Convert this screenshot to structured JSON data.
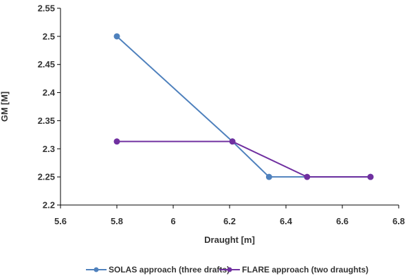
{
  "chart_data": {
    "type": "line",
    "title": "",
    "xlabel": "Draught [m]",
    "ylabel": "GM [M]",
    "xlim": [
      5.6,
      6.8
    ],
    "ylim": [
      2.2,
      2.55
    ],
    "xticks": [
      5.6,
      5.8,
      6,
      6.2,
      6.4,
      6.6,
      6.8
    ],
    "yticks": [
      2.2,
      2.25,
      2.3,
      2.35,
      2.4,
      2.45,
      2.5,
      2.55
    ],
    "xtick_labels": [
      "5.6",
      "5.8",
      "6",
      "6.2",
      "6.4",
      "6.6",
      "6.8"
    ],
    "ytick_labels": [
      "2.2",
      "2.25",
      "2.3",
      "2.35",
      "2.4",
      "2.45",
      "2.5",
      "2.55"
    ],
    "grid": false,
    "legend_position": "bottom",
    "series": [
      {
        "name": "SOLAS approach (three drafts)",
        "color": "#4F81BD",
        "x": [
          5.8,
          6.21,
          6.34,
          6.7
        ],
        "y": [
          2.5,
          2.313,
          2.25,
          2.25
        ]
      },
      {
        "name": "FLARE approach (two draughts)",
        "color": "#7030A0",
        "x": [
          5.8,
          6.21,
          6.475,
          6.7
        ],
        "y": [
          2.313,
          2.313,
          2.25,
          2.25
        ]
      }
    ]
  }
}
